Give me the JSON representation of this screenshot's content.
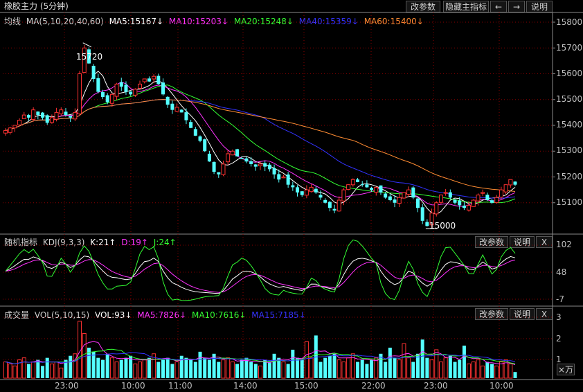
{
  "main": {
    "title": "橡胶主力 (5分钟)",
    "buttons": [
      "改参数",
      "隐藏主指标",
      "←",
      "→",
      "说明"
    ],
    "ma_label": "均线",
    "ma_params": "MA(5,10,20,40,60)",
    "ma_values": [
      {
        "text": "MA5:15167↓",
        "color": "#ffffff"
      },
      {
        "text": "MA10:15203↓",
        "color": "#ff33ff"
      },
      {
        "text": "MA20:15248↓",
        "color": "#33ff33"
      },
      {
        "text": "MA40:15359↓",
        "color": "#3333ff"
      },
      {
        "text": "MA60:15400↓",
        "color": "#ff8c33"
      }
    ],
    "y_ticks": [
      "15800",
      "15700",
      "15600",
      "15500",
      "15400",
      "15300",
      "15200",
      "15100"
    ],
    "high_label": "15720",
    "low_label": "15000"
  },
  "kdj": {
    "title": "随机指标",
    "params": "KDJ(9,3,3)",
    "values": [
      {
        "text": "K:21↑",
        "color": "#ffffff"
      },
      {
        "text": "D:19↑",
        "color": "#ff33ff"
      },
      {
        "text": "J:24↑",
        "color": "#33ff33"
      }
    ],
    "buttons": [
      "改参数",
      "说明",
      "X"
    ],
    "y_ticks": [
      "102",
      "48",
      "-7"
    ]
  },
  "vol": {
    "title": "成交量",
    "params": "VOL(5,10,15)",
    "values": [
      {
        "text": "VOL:93↓",
        "color": "#ffffff"
      },
      {
        "text": "MA5:7826↓",
        "color": "#ff33ff"
      },
      {
        "text": "MA10:7616↓",
        "color": "#33ff33"
      },
      {
        "text": "MA15:7185↓",
        "color": "#3333ff"
      }
    ],
    "buttons": [
      "改参数",
      "说明",
      "X"
    ],
    "y_ticks": [
      "3",
      "2",
      "1"
    ],
    "unit": "×万"
  },
  "time_axis": [
    "23:00",
    "10:00",
    "11:00",
    "14:00",
    "15:00",
    "22:00",
    "23:00",
    "10:00"
  ],
  "colors": {
    "up": "#ff3232",
    "down": "#54ffff",
    "grid": "#8b0000"
  },
  "chart_data": {
    "type": "candlestick",
    "price_range": [
      15000,
      15800
    ],
    "closes": [
      15380,
      15390,
      15400,
      15420,
      15440,
      15430,
      15460,
      15440,
      15430,
      15410,
      15430,
      15450,
      15460,
      15440,
      15430,
      15450,
      15600,
      15700,
      15640,
      15580,
      15530,
      15510,
      15490,
      15520,
      15560,
      15550,
      15530,
      15520,
      15540,
      15560,
      15580,
      15570,
      15590,
      15560,
      15520,
      15480,
      15460,
      15470,
      15450,
      15420,
      15390,
      15360,
      15340,
      15300,
      15260,
      15220,
      15210,
      15250,
      15290,
      15300,
      15280,
      15270,
      15260,
      15250,
      15240,
      15250,
      15240,
      15230,
      15210,
      15190,
      15200,
      15170,
      15160,
      15140,
      15130,
      15150,
      15160,
      15140,
      15120,
      15100,
      15080,
      15070,
      15110,
      15150,
      15170,
      15190,
      15180,
      15170,
      15160,
      15150,
      15160,
      15140,
      15120,
      15110,
      15100,
      15120,
      15140,
      15150,
      15120,
      15080,
      15030,
      15010,
      15060,
      15100,
      15130,
      15140,
      15120,
      15100,
      15090,
      15080,
      15090,
      15110,
      15130,
      15140,
      15110,
      15100,
      15120,
      15150,
      15170,
      15190,
      15170
    ],
    "volume_range": [
      0,
      3
    ],
    "volumes": [
      0.8,
      0.7,
      0.6,
      0.9,
      1.0,
      0.7,
      0.8,
      0.9,
      0.6,
      1.0,
      0.7,
      0.8,
      0.5,
      0.9,
      1.1,
      1.2,
      2.8,
      2.2,
      1.5,
      1.3,
      1.0,
      0.9,
      1.2,
      1.0,
      0.8,
      0.9,
      1.0,
      1.1,
      0.7,
      0.8,
      0.9,
      1.0,
      1.2,
      0.8,
      0.9,
      1.0,
      0.7,
      0.8,
      1.1,
      1.0,
      0.9,
      0.8,
      1.3,
      1.0,
      0.9,
      1.2,
      0.8,
      0.9,
      1.0,
      0.8,
      0.7,
      0.9,
      1.0,
      0.8,
      0.7,
      0.6,
      0.9,
      0.8,
      1.2,
      1.0,
      0.8,
      0.7,
      1.4,
      1.0,
      0.9,
      1.8,
      1.0,
      2.1,
      0.8,
      1.0,
      1.1,
      1.2,
      0.9,
      0.8,
      1.0,
      1.2,
      0.8,
      0.9,
      0.7,
      0.9,
      1.0,
      1.2,
      0.8,
      1.5,
      1.0,
      0.9,
      1.7,
      1.0,
      0.8,
      1.2,
      1.9,
      1.0,
      0.9,
      1.4,
      0.8,
      1.0,
      1.1,
      0.8,
      0.9,
      1.6,
      0.7,
      0.8,
      0.9,
      0.6,
      0.8,
      0.7,
      0.6,
      0.8,
      0.9,
      0.7,
      0.3
    ]
  }
}
